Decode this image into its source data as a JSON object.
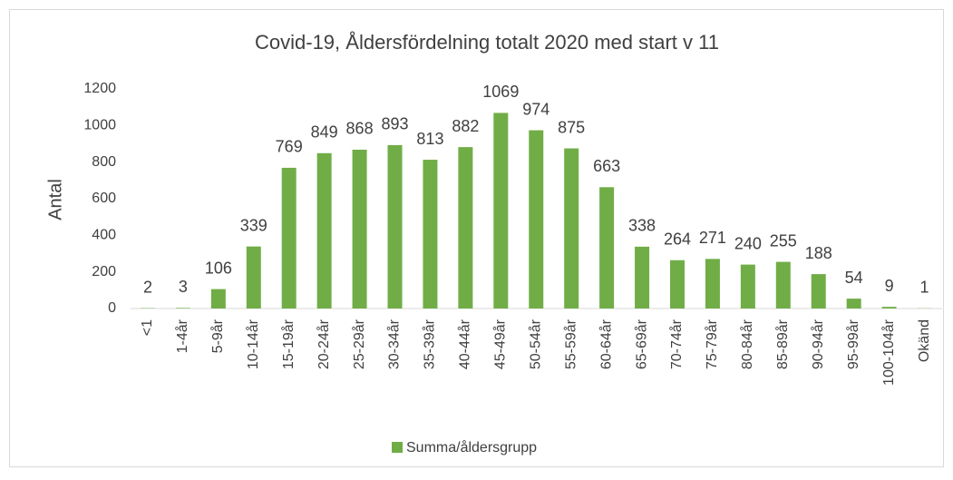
{
  "chart_data": {
    "type": "bar",
    "title": "Covid-19, Åldersfördelning totalt 2020 med start v 11",
    "y_label": "Antal",
    "categories": [
      "<1",
      "1-4år",
      "5-9år",
      "10-14år",
      "15-19år",
      "20-24år",
      "25-29år",
      "30-34år",
      "35-39år",
      "40-44år",
      "45-49år",
      "50-54år",
      "55-59år",
      "60-64år",
      "65-69år",
      "70-74år",
      "75-79år",
      "80-84år",
      "85-89år",
      "90-94år",
      "95-99år",
      "100-104år",
      "Okänd"
    ],
    "series": [
      {
        "name": "Summa/åldersgrupp",
        "color": "#70ad47",
        "values": [
          2,
          3,
          106,
          339,
          769,
          849,
          868,
          893,
          813,
          882,
          1069,
          974,
          875,
          663,
          338,
          264,
          271,
          240,
          255,
          188,
          54,
          9,
          1
        ]
      }
    ],
    "ylim": [
      0,
      1200
    ],
    "yticks": [
      0,
      200,
      400,
      600,
      800,
      1000,
      1200
    ],
    "grid": false,
    "legend": "bottom"
  }
}
